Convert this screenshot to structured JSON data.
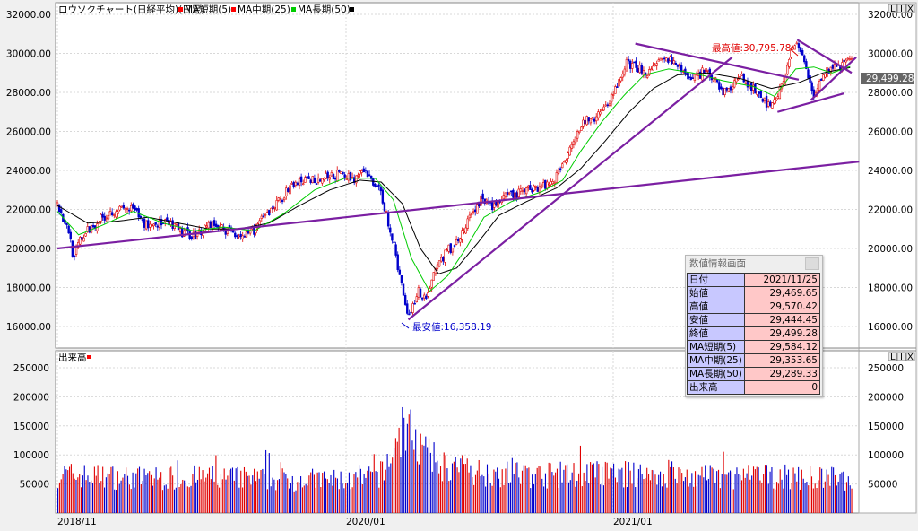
{
  "legend": {
    "title": "ロウソクチャート(日経平均)(日足)",
    "ma_short": "MA短期(5)",
    "ma_mid": "MA中期(25)",
    "ma_long": "MA長期(50)"
  },
  "colors": {
    "ma_short": "#ff0000",
    "ma_mid": "#00cc00",
    "ma_long": "#000000",
    "trendline": "#7b1fa2",
    "vol_up": "#e00000",
    "vol_down": "#0000cc",
    "price_label_bg": "#666666"
  },
  "volume_panel_label": "出来高",
  "window_buttons": [
    "L",
    "I",
    "X"
  ],
  "annotations": {
    "high": "最高値:30,795.78",
    "low": "最安値:16,358.19"
  },
  "current_price_label": "29,499.28",
  "info_panel": {
    "title": "数値情報画面",
    "rows": [
      {
        "label": "日付",
        "value": "2021/11/25"
      },
      {
        "label": "始値",
        "value": "29,469.65"
      },
      {
        "label": "高値",
        "value": "29,570.42"
      },
      {
        "label": "安値",
        "value": "29,444.45"
      },
      {
        "label": "終値",
        "value": "29,499.28"
      },
      {
        "label": "MA短期(5)",
        "value": "29,584.12"
      },
      {
        "label": "MA中期(25)",
        "value": "29,353.65"
      },
      {
        "label": "MA長期(50)",
        "value": "29,289.33"
      },
      {
        "label": "出来高",
        "value": "0"
      }
    ]
  },
  "chart_data": {
    "type": "line",
    "title": "ロウソクチャート(日経平均)(日足)",
    "x_tick_labels": [
      "2018/11",
      "2020/01",
      "2021/01"
    ],
    "price_ticks": [
      "32000.00",
      "30000.00",
      "28000.00",
      "26000.00",
      "24000.00",
      "22000.00",
      "20000.00",
      "18000.00",
      "16000.00"
    ],
    "price_ticks_right": [
      "32000.00",
      "30000.00",
      "28000.00",
      "26000.00",
      "24000.00",
      "22000.00",
      "20000.00",
      "18000.00",
      "16000.00"
    ],
    "ylim": [
      15000,
      33500
    ],
    "volume_ticks": [
      "250000",
      "200000",
      "150000",
      "100000",
      "50000"
    ],
    "volume_ylim": [
      0,
      270000
    ],
    "close_series": [
      {
        "t": 0,
        "v": 22300
      },
      {
        "t": 4,
        "v": 21500
      },
      {
        "t": 8,
        "v": 20800
      },
      {
        "t": 11,
        "v": 19300
      },
      {
        "t": 14,
        "v": 20300
      },
      {
        "t": 20,
        "v": 20900
      },
      {
        "t": 28,
        "v": 21500
      },
      {
        "t": 38,
        "v": 22000
      },
      {
        "t": 50,
        "v": 22000
      },
      {
        "t": 58,
        "v": 21200
      },
      {
        "t": 66,
        "v": 21300
      },
      {
        "t": 75,
        "v": 21200
      },
      {
        "t": 82,
        "v": 20800
      },
      {
        "t": 92,
        "v": 20700
      },
      {
        "t": 100,
        "v": 21300
      },
      {
        "t": 110,
        "v": 21000
      },
      {
        "t": 118,
        "v": 20800
      },
      {
        "t": 126,
        "v": 20600
      },
      {
        "t": 136,
        "v": 21500
      },
      {
        "t": 146,
        "v": 22400
      },
      {
        "t": 156,
        "v": 23300
      },
      {
        "t": 166,
        "v": 23500
      },
      {
        "t": 176,
        "v": 23600
      },
      {
        "t": 186,
        "v": 23800
      },
      {
        "t": 196,
        "v": 23600
      },
      {
        "t": 203,
        "v": 23900
      },
      {
        "t": 210,
        "v": 23300
      },
      {
        "t": 214,
        "v": 22800
      },
      {
        "t": 220,
        "v": 21000
      },
      {
        "t": 226,
        "v": 18700
      },
      {
        "t": 232,
        "v": 16500
      },
      {
        "t": 238,
        "v": 17800
      },
      {
        "t": 244,
        "v": 17500
      },
      {
        "t": 250,
        "v": 19000
      },
      {
        "t": 256,
        "v": 19700
      },
      {
        "t": 262,
        "v": 20200
      },
      {
        "t": 268,
        "v": 20800
      },
      {
        "t": 274,
        "v": 21800
      },
      {
        "t": 280,
        "v": 22500
      },
      {
        "t": 288,
        "v": 22200
      },
      {
        "t": 296,
        "v": 22600
      },
      {
        "t": 304,
        "v": 22800
      },
      {
        "t": 312,
        "v": 23100
      },
      {
        "t": 320,
        "v": 23200
      },
      {
        "t": 328,
        "v": 23500
      },
      {
        "t": 334,
        "v": 24300
      },
      {
        "t": 340,
        "v": 25500
      },
      {
        "t": 346,
        "v": 26400
      },
      {
        "t": 352,
        "v": 26600
      },
      {
        "t": 358,
        "v": 26800
      },
      {
        "t": 364,
        "v": 27500
      },
      {
        "t": 370,
        "v": 28300
      },
      {
        "t": 376,
        "v": 29500
      },
      {
        "t": 381,
        "v": 29300
      },
      {
        "t": 386,
        "v": 29200
      },
      {
        "t": 392,
        "v": 29000
      },
      {
        "t": 398,
        "v": 29500
      },
      {
        "t": 404,
        "v": 29700
      },
      {
        "t": 410,
        "v": 29300
      },
      {
        "t": 416,
        "v": 28900
      },
      {
        "t": 422,
        "v": 28800
      },
      {
        "t": 428,
        "v": 29100
      },
      {
        "t": 434,
        "v": 28700
      },
      {
        "t": 440,
        "v": 28100
      },
      {
        "t": 446,
        "v": 28200
      },
      {
        "t": 452,
        "v": 28900
      },
      {
        "t": 458,
        "v": 28300
      },
      {
        "t": 464,
        "v": 27800
      },
      {
        "t": 470,
        "v": 27400
      },
      {
        "t": 476,
        "v": 27900
      },
      {
        "t": 482,
        "v": 29000
      },
      {
        "t": 486,
        "v": 30400
      },
      {
        "t": 489,
        "v": 30500
      },
      {
        "t": 493,
        "v": 29600
      },
      {
        "t": 497,
        "v": 28600
      },
      {
        "t": 500,
        "v": 27900
      },
      {
        "t": 504,
        "v": 28500
      },
      {
        "t": 508,
        "v": 29000
      },
      {
        "t": 512,
        "v": 29400
      },
      {
        "t": 516,
        "v": 29200
      },
      {
        "t": 520,
        "v": 29600
      },
      {
        "t": 525,
        "v": 29499
      }
    ],
    "ma_mid_series": [
      {
        "t": 0,
        "v": 21900
      },
      {
        "t": 14,
        "v": 20700
      },
      {
        "t": 30,
        "v": 21200
      },
      {
        "t": 50,
        "v": 21900
      },
      {
        "t": 70,
        "v": 21300
      },
      {
        "t": 90,
        "v": 20900
      },
      {
        "t": 110,
        "v": 21100
      },
      {
        "t": 130,
        "v": 20900
      },
      {
        "t": 150,
        "v": 21800
      },
      {
        "t": 170,
        "v": 23000
      },
      {
        "t": 190,
        "v": 23600
      },
      {
        "t": 210,
        "v": 23600
      },
      {
        "t": 222,
        "v": 22500
      },
      {
        "t": 234,
        "v": 19500
      },
      {
        "t": 246,
        "v": 17800
      },
      {
        "t": 258,
        "v": 18600
      },
      {
        "t": 270,
        "v": 20000
      },
      {
        "t": 282,
        "v": 21600
      },
      {
        "t": 300,
        "v": 22400
      },
      {
        "t": 320,
        "v": 22900
      },
      {
        "t": 334,
        "v": 23500
      },
      {
        "t": 346,
        "v": 25000
      },
      {
        "t": 360,
        "v": 26500
      },
      {
        "t": 374,
        "v": 27800
      },
      {
        "t": 388,
        "v": 28900
      },
      {
        "t": 404,
        "v": 29200
      },
      {
        "t": 420,
        "v": 29000
      },
      {
        "t": 440,
        "v": 28600
      },
      {
        "t": 460,
        "v": 28300
      },
      {
        "t": 474,
        "v": 27800
      },
      {
        "t": 488,
        "v": 29200
      },
      {
        "t": 500,
        "v": 29300
      },
      {
        "t": 512,
        "v": 29000
      },
      {
        "t": 525,
        "v": 29354
      }
    ],
    "ma_long_series": [
      {
        "t": 0,
        "v": 22200
      },
      {
        "t": 20,
        "v": 21300
      },
      {
        "t": 40,
        "v": 21400
      },
      {
        "t": 60,
        "v": 21600
      },
      {
        "t": 80,
        "v": 21300
      },
      {
        "t": 100,
        "v": 21000
      },
      {
        "t": 120,
        "v": 21000
      },
      {
        "t": 140,
        "v": 21300
      },
      {
        "t": 160,
        "v": 22200
      },
      {
        "t": 180,
        "v": 23000
      },
      {
        "t": 200,
        "v": 23500
      },
      {
        "t": 214,
        "v": 23400
      },
      {
        "t": 228,
        "v": 22300
      },
      {
        "t": 240,
        "v": 20000
      },
      {
        "t": 252,
        "v": 18700
      },
      {
        "t": 264,
        "v": 19000
      },
      {
        "t": 278,
        "v": 20300
      },
      {
        "t": 292,
        "v": 21700
      },
      {
        "t": 310,
        "v": 22400
      },
      {
        "t": 330,
        "v": 23100
      },
      {
        "t": 346,
        "v": 24100
      },
      {
        "t": 362,
        "v": 25500
      },
      {
        "t": 378,
        "v": 27000
      },
      {
        "t": 394,
        "v": 28200
      },
      {
        "t": 410,
        "v": 28900
      },
      {
        "t": 430,
        "v": 29000
      },
      {
        "t": 452,
        "v": 28700
      },
      {
        "t": 472,
        "v": 28200
      },
      {
        "t": 490,
        "v": 28500
      },
      {
        "t": 506,
        "v": 29000
      },
      {
        "t": 525,
        "v": 29289
      }
    ],
    "trendlines": [
      {
        "t1": 0,
        "v1": 20000,
        "t2": 530,
        "v2": 24450
      },
      {
        "t1": 232,
        "v1": 16350,
        "t2": 446,
        "v2": 29800
      },
      {
        "t1": 382,
        "v1": 30500,
        "t2": 490,
        "v2": 28650
      },
      {
        "t1": 476,
        "v1": 27000,
        "t2": 520,
        "v2": 27950
      },
      {
        "t1": 489,
        "v1": 30700,
        "t2": 525,
        "v2": 29000
      },
      {
        "t1": 498,
        "v1": 27600,
        "t2": 528,
        "v2": 29800
      }
    ],
    "volume_profile": [
      {
        "t": 0,
        "v": 78000
      },
      {
        "t": 20,
        "v": 75000
      },
      {
        "t": 60,
        "v": 70000
      },
      {
        "t": 100,
        "v": 72000
      },
      {
        "t": 150,
        "v": 68000
      },
      {
        "t": 200,
        "v": 66000
      },
      {
        "t": 215,
        "v": 80000
      },
      {
        "t": 222,
        "v": 130000
      },
      {
        "t": 228,
        "v": 175000
      },
      {
        "t": 236,
        "v": 150000
      },
      {
        "t": 246,
        "v": 110000
      },
      {
        "t": 258,
        "v": 92000
      },
      {
        "t": 280,
        "v": 82000
      },
      {
        "t": 320,
        "v": 76000
      },
      {
        "t": 350,
        "v": 80000
      },
      {
        "t": 380,
        "v": 78000
      },
      {
        "t": 420,
        "v": 72000
      },
      {
        "t": 470,
        "v": 74000
      },
      {
        "t": 525,
        "v": 68000
      }
    ]
  }
}
